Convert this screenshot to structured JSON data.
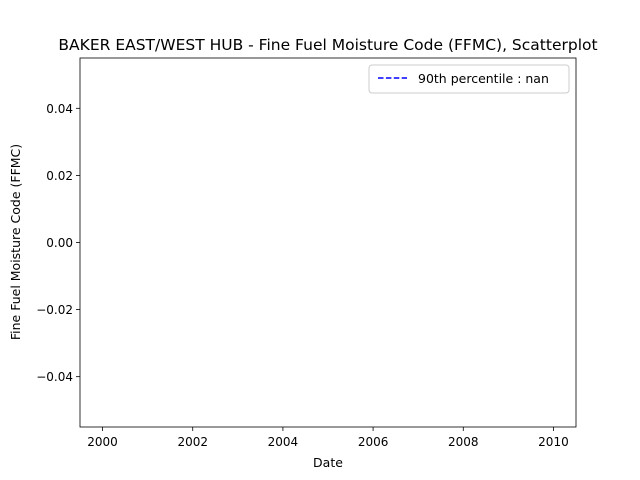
{
  "chart_data": {
    "type": "scatter",
    "title": "BAKER EAST/WEST HUB - Fine Fuel Moisture Code (FFMC), Scatterplot",
    "xlabel": "Date",
    "ylabel": "Fine Fuel Moisture Code (FFMC)",
    "xlim": [
      1999.5,
      2010.5
    ],
    "ylim": [
      -0.055,
      0.055
    ],
    "x_ticks": [
      2000,
      2002,
      2004,
      2006,
      2008,
      2010
    ],
    "x_tick_labels": [
      "2000",
      "2002",
      "2004",
      "2006",
      "2008",
      "2010"
    ],
    "y_ticks": [
      -0.04,
      -0.02,
      0.0,
      0.02,
      0.04
    ],
    "y_tick_labels": [
      "−0.04",
      "−0.02",
      "0.00",
      "0.02",
      "0.04"
    ],
    "grid": false,
    "legend_position": "upper right",
    "series": [
      {
        "name": "90th percentile : nan",
        "style": "dashed-line",
        "color": "#0000ff",
        "x": [],
        "y": []
      }
    ]
  }
}
